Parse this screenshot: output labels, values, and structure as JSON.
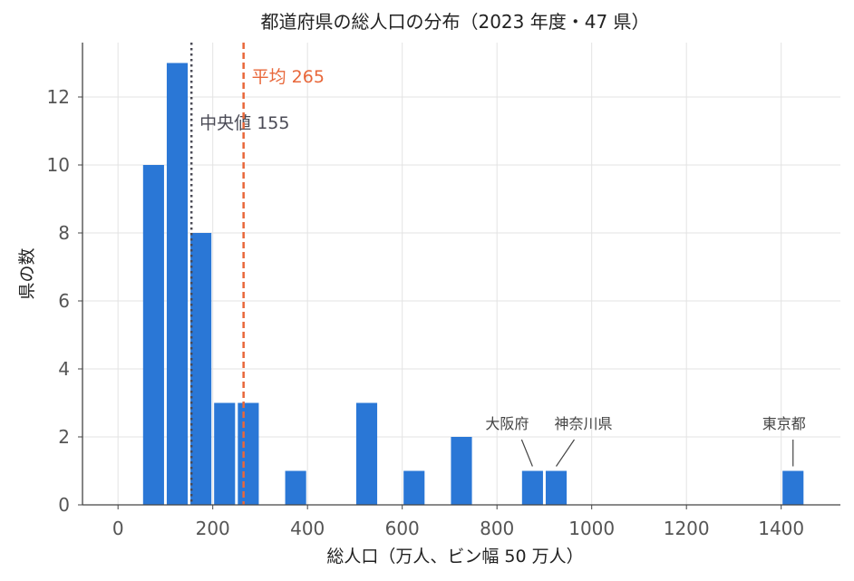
{
  "chart_data": {
    "type": "bar",
    "title": "都道府県の総人口の分布（2023 年度・47 県）",
    "xlabel": "総人口（万人、ビン幅 50 万人）",
    "ylabel": "県の数",
    "xlim": [
      -75,
      1525
    ],
    "ylim": [
      0,
      13.6
    ],
    "xticks": [
      0,
      200,
      400,
      600,
      800,
      1000,
      1200,
      1400
    ],
    "yticks": [
      0,
      2,
      4,
      6,
      8,
      10,
      12
    ],
    "bin_width": 50,
    "bins": [
      {
        "start": 50,
        "end": 100,
        "count": 10
      },
      {
        "start": 100,
        "end": 150,
        "count": 13
      },
      {
        "start": 150,
        "end": 200,
        "count": 8
      },
      {
        "start": 200,
        "end": 250,
        "count": 3
      },
      {
        "start": 250,
        "end": 300,
        "count": 3
      },
      {
        "start": 350,
        "end": 400,
        "count": 1
      },
      {
        "start": 500,
        "end": 550,
        "count": 3
      },
      {
        "start": 600,
        "end": 650,
        "count": 1
      },
      {
        "start": 700,
        "end": 750,
        "count": 2
      },
      {
        "start": 850,
        "end": 900,
        "count": 1
      },
      {
        "start": 900,
        "end": 950,
        "count": 1
      },
      {
        "start": 1400,
        "end": 1450,
        "count": 1
      }
    ],
    "bar_color": "#2a77d6",
    "grid": true,
    "reference_lines": [
      {
        "label": "中央値 155",
        "value": 155,
        "style": "dotted",
        "color": "#4a4a55"
      },
      {
        "label": "平均 265",
        "value": 265,
        "style": "dashed",
        "color": "#e8673a"
      }
    ],
    "annotations": [
      {
        "text": "大阪府",
        "target_x": 875,
        "target_count": 1
      },
      {
        "text": "神奈川県",
        "target_x": 925,
        "target_count": 1
      },
      {
        "text": "東京都",
        "target_x": 1425,
        "target_count": 1
      }
    ]
  }
}
